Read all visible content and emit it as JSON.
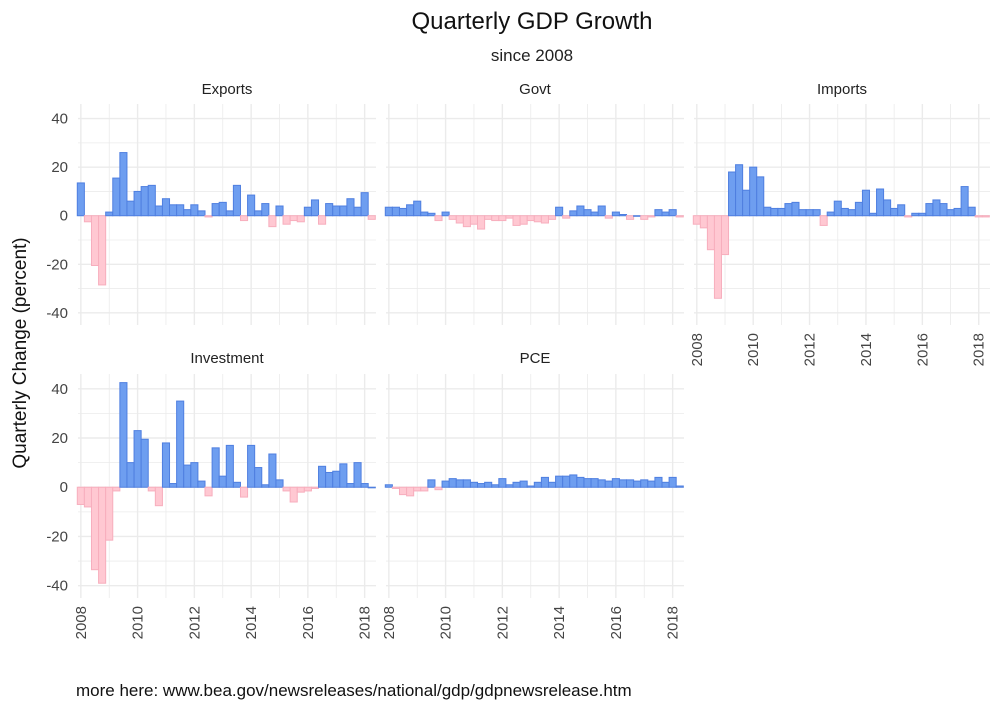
{
  "chart_data": {
    "type": "bar",
    "title": "Quarterly GDP Growth",
    "subtitle": "since 2008",
    "ylabel": "Quarterly Change (percent)",
    "xlabel": "",
    "ylim": [
      -45,
      46
    ],
    "xlim": [
      2007.9,
      2018.4
    ],
    "x_ticks": [
      2008,
      2010,
      2012,
      2014,
      2016,
      2018
    ],
    "y_ticks": [
      -40,
      -20,
      0,
      20,
      40
    ],
    "grid": true,
    "colors": {
      "positive_fill": "#6e9ef0",
      "positive_stroke": "#4f7fe0",
      "negative_fill": "#ffc8d2",
      "negative_stroke": "#f7aebd"
    },
    "quarters": [
      "2008Q1",
      "2008Q2",
      "2008Q3",
      "2008Q4",
      "2009Q1",
      "2009Q2",
      "2009Q3",
      "2009Q4",
      "2010Q1",
      "2010Q2",
      "2010Q3",
      "2010Q4",
      "2011Q1",
      "2011Q2",
      "2011Q3",
      "2011Q4",
      "2012Q1",
      "2012Q2",
      "2012Q3",
      "2012Q4",
      "2013Q1",
      "2013Q2",
      "2013Q3",
      "2013Q4",
      "2014Q1",
      "2014Q2",
      "2014Q3",
      "2014Q4",
      "2015Q1",
      "2015Q2",
      "2015Q3",
      "2015Q4",
      "2016Q1",
      "2016Q2",
      "2016Q3",
      "2016Q4",
      "2017Q1",
      "2017Q2",
      "2017Q3",
      "2017Q4",
      "2018Q1",
      "2018Q2"
    ],
    "panels": [
      {
        "name": "Exports",
        "values": [
          13.5,
          -2.5,
          -20.5,
          -28.5,
          1.5,
          15.5,
          26,
          6,
          10,
          12,
          12.5,
          4,
          7,
          4.5,
          4.5,
          2.5,
          4.5,
          2,
          -0.5,
          5,
          5.5,
          2,
          12.5,
          -2,
          8.5,
          2,
          5,
          -4.5,
          4,
          -3.5,
          -2,
          -2.5,
          3.5,
          6.5,
          -3.5,
          5,
          4,
          4,
          7,
          3.5,
          9.5,
          -1.5
        ]
      },
      {
        "name": "Govt",
        "values": [
          3.5,
          3.5,
          3,
          4.5,
          6,
          1.5,
          1,
          -2,
          1.5,
          -1.5,
          -3,
          -4.5,
          -3.5,
          -5.5,
          -1.5,
          -2,
          -2,
          -1,
          -4,
          -3.5,
          -2,
          -2.5,
          -3,
          -1.5,
          3.5,
          -1,
          2,
          4,
          2.5,
          1.5,
          4,
          -1,
          1.5,
          0.5,
          -1.5,
          0,
          -1.5,
          -0.5,
          2.5,
          1.5,
          2.5,
          -0.5
        ]
      },
      {
        "name": "Imports",
        "values": [
          -3.5,
          -5,
          -14,
          -34,
          -16,
          18,
          21,
          10.5,
          20,
          16,
          3.5,
          3,
          3,
          5,
          5.5,
          2.5,
          2.5,
          2.5,
          -4,
          1.5,
          6,
          3,
          2.5,
          5.5,
          10.5,
          1,
          11,
          6.5,
          3,
          4.5,
          -0.5,
          1,
          1,
          5,
          6.5,
          5,
          2.5,
          3,
          12,
          3.5,
          -0.5,
          -0.5
        ]
      },
      {
        "name": "Investment",
        "values": [
          -7,
          -8,
          -33.5,
          -39,
          -21.5,
          -1.5,
          42.5,
          10,
          23,
          19.5,
          -1.5,
          -7.5,
          18,
          1.5,
          35,
          9,
          10,
          2.5,
          -3.5,
          16,
          4.5,
          17,
          2,
          -4,
          17,
          8,
          1,
          13.5,
          3,
          -1.5,
          -6,
          -2,
          -1.5,
          -0.5,
          8.5,
          6,
          6.5,
          9.5,
          1.5,
          10,
          1.5,
          0
        ]
      },
      {
        "name": "PCE",
        "values": [
          1,
          -0.5,
          -3,
          -3.5,
          -1.5,
          -1.5,
          3,
          -1,
          2.5,
          3.5,
          3,
          3,
          2,
          1.5,
          2,
          1,
          3.5,
          1,
          2,
          2.5,
          0.5,
          2,
          4,
          2,
          4.5,
          4.5,
          5,
          4,
          3.5,
          3.5,
          3,
          2.5,
          3.5,
          3,
          3,
          2.5,
          3,
          2.5,
          4,
          2,
          4,
          0.5
        ]
      }
    ]
  },
  "caption": "more here: www.bea.gov/newsreleases/national/gdp/gdpnewsrelease.htm"
}
